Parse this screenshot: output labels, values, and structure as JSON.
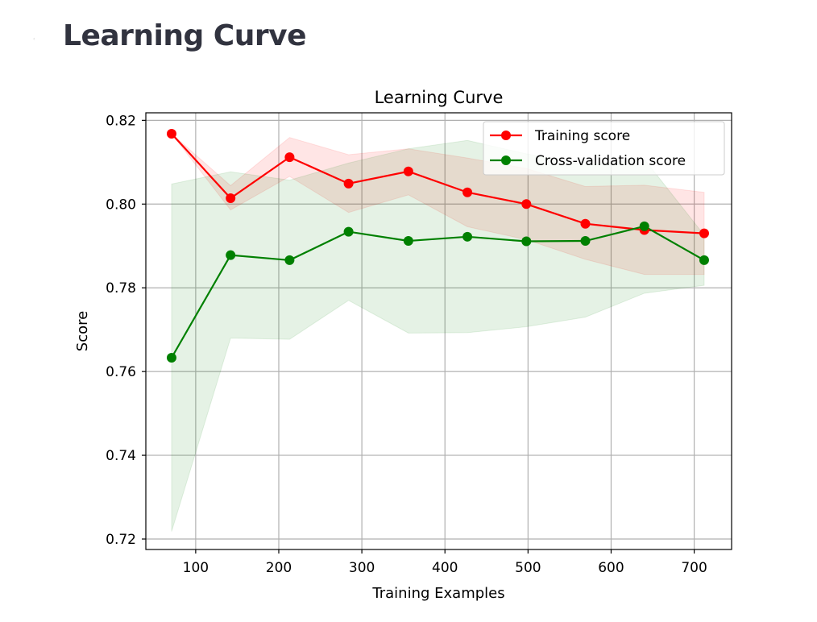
{
  "page": {
    "heading": "Learning Curve"
  },
  "chart_data": {
    "type": "line",
    "title": "Learning Curve",
    "xlabel": "Training Examples",
    "ylabel": "Score",
    "xlim": [
      40,
      745
    ],
    "ylim": [
      0.7175,
      0.8218
    ],
    "xticks": [
      100,
      200,
      300,
      400,
      500,
      600,
      700
    ],
    "yticks": [
      0.72,
      0.74,
      0.76,
      0.78,
      0.8,
      0.82
    ],
    "grid": true,
    "legend_position": "top-right",
    "x": [
      71,
      142,
      213,
      284,
      356,
      427,
      498,
      569,
      640,
      712
    ],
    "series": [
      {
        "name": "Training score",
        "color": "#ff0000",
        "band_color": "#ff0000",
        "values": [
          0.8168,
          0.8014,
          0.8112,
          0.8049,
          0.8078,
          0.8028,
          0.8,
          0.7953,
          0.7938,
          0.793
        ],
        "upper": [
          0.8168,
          0.8044,
          0.8159,
          0.8118,
          0.8132,
          0.811,
          0.8085,
          0.8042,
          0.8045,
          0.8028
        ],
        "lower": [
          0.8168,
          0.7986,
          0.8066,
          0.798,
          0.8022,
          0.7946,
          0.7915,
          0.7868,
          0.7832,
          0.7832
        ]
      },
      {
        "name": "Cross-validation score",
        "color": "#008000",
        "band_color": "#008000",
        "values": [
          0.7633,
          0.7878,
          0.7866,
          0.7934,
          0.7912,
          0.7922,
          0.7911,
          0.7912,
          0.7947,
          0.7866
        ],
        "upper": [
          0.8048,
          0.8077,
          0.8057,
          0.8098,
          0.8132,
          0.8152,
          0.812,
          0.8094,
          0.8107,
          0.7926
        ],
        "lower": [
          0.7218,
          0.768,
          0.7677,
          0.777,
          0.7692,
          0.7693,
          0.7707,
          0.773,
          0.7787,
          0.7806
        ]
      }
    ]
  }
}
